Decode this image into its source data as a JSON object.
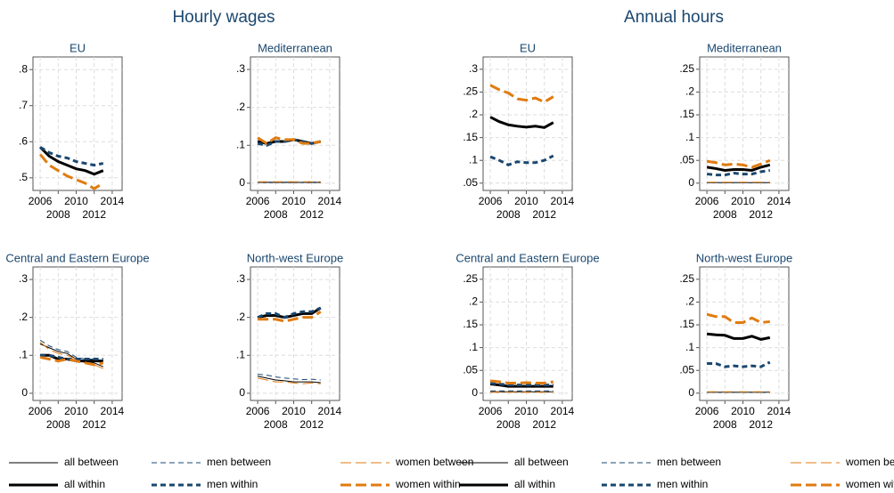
{
  "titles": [
    "Hourly wages",
    "Annual hours"
  ],
  "chart_data": [
    {
      "type": "line",
      "title": "EU",
      "x": [
        2006,
        2007,
        2008,
        2009,
        2010,
        2011,
        2012,
        2013
      ],
      "xlim": [
        2005.2,
        2015.1
      ],
      "xticks": [
        2006,
        2008,
        2010,
        2012,
        2014
      ],
      "ylim": [
        0.465,
        0.835
      ],
      "yticks": [
        {
          "value": 0.5,
          "label": ".5"
        },
        {
          "value": 0.6,
          "label": ".6"
        },
        {
          "value": 0.7,
          "label": ".7"
        },
        {
          "value": 0.8,
          "label": ".8"
        }
      ],
      "grid": true,
      "series": [
        {
          "name": "all within",
          "color": "#000000",
          "dash": "solid",
          "weight": "thick",
          "values": [
            0.585,
            0.56,
            0.545,
            0.535,
            0.525,
            0.52,
            0.51,
            0.52
          ]
        },
        {
          "name": "men within",
          "color": "#1a476f",
          "dash": "dash",
          "weight": "thick",
          "values": [
            0.585,
            0.57,
            0.56,
            0.555,
            0.545,
            0.54,
            0.535,
            0.54
          ]
        },
        {
          "name": "women within",
          "color": "#e07b10",
          "dash": "longdash",
          "weight": "thick",
          "values": [
            0.565,
            0.535,
            0.52,
            0.505,
            0.495,
            0.485,
            0.47,
            0.485
          ]
        }
      ]
    },
    {
      "type": "line",
      "title": "Mediterranean",
      "x": [
        2006,
        2007,
        2008,
        2009,
        2010,
        2011,
        2012,
        2013
      ],
      "xlim": [
        2005.2,
        2015.1
      ],
      "xticks": [
        2006,
        2008,
        2010,
        2012,
        2014
      ],
      "ylim": [
        -0.019,
        0.333
      ],
      "yticks": [
        0,
        {
          "value": 0.1,
          "label": ".1"
        },
        {
          "value": 0.2,
          "label": ".2"
        },
        {
          "value": 0.3,
          "label": ".3"
        }
      ],
      "grid": true,
      "series": [
        {
          "name": "all between",
          "color": "#000000",
          "dash": "solid",
          "weight": "thin",
          "values": [
            0.002,
            0.002,
            0.002,
            0.002,
            0.002,
            0.002,
            0.002,
            0.002
          ]
        },
        {
          "name": "men between",
          "color": "#1a476f",
          "dash": "dash",
          "weight": "thin",
          "values": [
            0.003,
            0.003,
            0.003,
            0.003,
            0.003,
            0.003,
            0.003,
            0.003
          ]
        },
        {
          "name": "women between",
          "color": "#e07b10",
          "dash": "longdash",
          "weight": "thin",
          "values": [
            0.004,
            0.004,
            0.004,
            0.004,
            0.004,
            0.004,
            0.004,
            0.004
          ]
        },
        {
          "name": "all within",
          "color": "#000000",
          "dash": "solid",
          "weight": "thick",
          "values": [
            0.11,
            0.105,
            0.11,
            0.11,
            0.115,
            0.11,
            0.105,
            0.11
          ]
        },
        {
          "name": "men within",
          "color": "#1a476f",
          "dash": "dash",
          "weight": "thick",
          "values": [
            0.105,
            0.1,
            0.11,
            0.11,
            0.115,
            0.11,
            0.105,
            0.11
          ]
        },
        {
          "name": "women within",
          "color": "#e07b10",
          "dash": "longdash",
          "weight": "thick",
          "values": [
            0.12,
            0.105,
            0.12,
            0.115,
            0.115,
            0.105,
            0.105,
            0.11
          ]
        }
      ]
    },
    {
      "type": "line",
      "title": "Central and Eastern Europe",
      "x": [
        2006,
        2007,
        2008,
        2009,
        2010,
        2011,
        2012,
        2013
      ],
      "xlim": [
        2005.2,
        2015.1
      ],
      "xticks": [
        2006,
        2008,
        2010,
        2012,
        2014
      ],
      "ylim": [
        -0.019,
        0.333
      ],
      "yticks": [
        0,
        {
          "value": 0.1,
          "label": ".1"
        },
        {
          "value": 0.2,
          "label": ".2"
        },
        {
          "value": 0.3,
          "label": ".3"
        }
      ],
      "grid": true,
      "series": [
        {
          "name": "all between",
          "color": "#000000",
          "dash": "solid",
          "weight": "thin",
          "values": [
            0.13,
            0.12,
            0.11,
            0.105,
            0.09,
            0.085,
            0.08,
            0.07
          ]
        },
        {
          "name": "men between",
          "color": "#1a476f",
          "dash": "dash",
          "weight": "thin",
          "values": [
            0.14,
            0.125,
            0.115,
            0.11,
            0.095,
            0.09,
            0.09,
            0.085
          ]
        },
        {
          "name": "women between",
          "color": "#e07b10",
          "dash": "longdash",
          "weight": "thin",
          "values": [
            0.135,
            0.115,
            0.105,
            0.1,
            0.09,
            0.08,
            0.075,
            0.065
          ]
        },
        {
          "name": "all within",
          "color": "#000000",
          "dash": "solid",
          "weight": "thick",
          "values": [
            0.1,
            0.1,
            0.09,
            0.09,
            0.085,
            0.085,
            0.085,
            0.085
          ]
        },
        {
          "name": "men within",
          "color": "#1a476f",
          "dash": "dash",
          "weight": "thick",
          "values": [
            0.1,
            0.1,
            0.095,
            0.09,
            0.09,
            0.09,
            0.09,
            0.09
          ]
        },
        {
          "name": "women within",
          "color": "#e07b10",
          "dash": "longdash",
          "weight": "thick",
          "values": [
            0.095,
            0.09,
            0.085,
            0.09,
            0.085,
            0.08,
            0.075,
            0.08
          ]
        }
      ]
    },
    {
      "type": "line",
      "title": "North-west Europe",
      "x": [
        2006,
        2007,
        2008,
        2009,
        2010,
        2011,
        2012,
        2013
      ],
      "xlim": [
        2005.2,
        2015.1
      ],
      "xticks": [
        2006,
        2008,
        2010,
        2012,
        2014
      ],
      "ylim": [
        -0.019,
        0.333
      ],
      "yticks": [
        0,
        {
          "value": 0.1,
          "label": ".1"
        },
        {
          "value": 0.2,
          "label": ".2"
        },
        {
          "value": 0.3,
          "label": ".3"
        }
      ],
      "grid": true,
      "series": [
        {
          "name": "all between",
          "color": "#000000",
          "dash": "solid",
          "weight": "thin",
          "values": [
            0.045,
            0.04,
            0.035,
            0.033,
            0.03,
            0.03,
            0.03,
            0.028
          ]
        },
        {
          "name": "men between",
          "color": "#1a476f",
          "dash": "dash",
          "weight": "thin",
          "values": [
            0.05,
            0.048,
            0.043,
            0.04,
            0.038,
            0.036,
            0.037,
            0.035
          ]
        },
        {
          "name": "women between",
          "color": "#e07b10",
          "dash": "longdash",
          "weight": "thin",
          "values": [
            0.04,
            0.035,
            0.03,
            0.03,
            0.027,
            0.025,
            0.027,
            0.025
          ]
        },
        {
          "name": "all within",
          "color": "#000000",
          "dash": "solid",
          "weight": "thick",
          "values": [
            0.2,
            0.205,
            0.205,
            0.2,
            0.205,
            0.21,
            0.21,
            0.225
          ]
        },
        {
          "name": "men within",
          "color": "#1a476f",
          "dash": "dash",
          "weight": "thick",
          "values": [
            0.2,
            0.21,
            0.21,
            0.2,
            0.21,
            0.215,
            0.215,
            0.225
          ]
        },
        {
          "name": "women within",
          "color": "#e07b10",
          "dash": "longdash",
          "weight": "thick",
          "values": [
            0.195,
            0.195,
            0.195,
            0.19,
            0.195,
            0.2,
            0.2,
            0.215
          ]
        }
      ]
    },
    {
      "type": "line",
      "title": "EU",
      "x": [
        2006,
        2007,
        2008,
        2009,
        2010,
        2011,
        2012,
        2013
      ],
      "xlim": [
        2005.2,
        2015.1
      ],
      "xticks": [
        2006,
        2008,
        2010,
        2012,
        2014
      ],
      "ylim": [
        0.034,
        0.327
      ],
      "yticks": [
        {
          "value": 0.05,
          "label": ".05"
        },
        {
          "value": 0.1,
          "label": ".1"
        },
        {
          "value": 0.15,
          "label": ".15"
        },
        {
          "value": 0.2,
          "label": ".2"
        },
        {
          "value": 0.25,
          "label": ".25"
        },
        {
          "value": 0.3,
          "label": ".3"
        }
      ],
      "grid": true,
      "series": [
        {
          "name": "all within",
          "color": "#000000",
          "dash": "solid",
          "weight": "thick",
          "values": [
            0.195,
            0.185,
            0.178,
            0.175,
            0.173,
            0.175,
            0.172,
            0.183
          ]
        },
        {
          "name": "men within",
          "color": "#1a476f",
          "dash": "dash",
          "weight": "thick",
          "values": [
            0.108,
            0.1,
            0.09,
            0.097,
            0.095,
            0.095,
            0.1,
            0.11
          ]
        },
        {
          "name": "women within",
          "color": "#e07b10",
          "dash": "longdash",
          "weight": "thick",
          "values": [
            0.265,
            0.255,
            0.248,
            0.235,
            0.232,
            0.237,
            0.228,
            0.24
          ]
        }
      ]
    },
    {
      "type": "line",
      "title": "Mediterranean",
      "x": [
        2006,
        2007,
        2008,
        2009,
        2010,
        2011,
        2012,
        2013
      ],
      "xlim": [
        2005.2,
        2015.1
      ],
      "xticks": [
        2006,
        2008,
        2010,
        2012,
        2014
      ],
      "ylim": [
        -0.016,
        0.277
      ],
      "yticks": [
        0,
        {
          "value": 0.05,
          "label": ".05"
        },
        {
          "value": 0.1,
          "label": ".1"
        },
        {
          "value": 0.15,
          "label": ".15"
        },
        {
          "value": 0.2,
          "label": ".2"
        },
        {
          "value": 0.25,
          "label": ".25"
        }
      ],
      "grid": true,
      "series": [
        {
          "name": "all between",
          "color": "#000000",
          "dash": "solid",
          "weight": "thin",
          "values": [
            0.001,
            0.001,
            0.001,
            0.001,
            0.001,
            0.001,
            0.001,
            0.001
          ]
        },
        {
          "name": "men between",
          "color": "#1a476f",
          "dash": "dash",
          "weight": "thin",
          "values": [
            0.001,
            0.001,
            0.001,
            0.001,
            0.001,
            0.001,
            0.001,
            0.001
          ]
        },
        {
          "name": "women between",
          "color": "#e07b10",
          "dash": "longdash",
          "weight": "thin",
          "values": [
            0.002,
            0.002,
            0.002,
            0.002,
            0.002,
            0.002,
            0.002,
            0.002
          ]
        },
        {
          "name": "all within",
          "color": "#000000",
          "dash": "solid",
          "weight": "thick",
          "values": [
            0.035,
            0.032,
            0.028,
            0.03,
            0.03,
            0.028,
            0.035,
            0.04
          ]
        },
        {
          "name": "men within",
          "color": "#1a476f",
          "dash": "dash",
          "weight": "thick",
          "values": [
            0.02,
            0.018,
            0.018,
            0.022,
            0.02,
            0.02,
            0.025,
            0.028
          ]
        },
        {
          "name": "women within",
          "color": "#e07b10",
          "dash": "longdash",
          "weight": "thick",
          "values": [
            0.048,
            0.045,
            0.04,
            0.042,
            0.04,
            0.035,
            0.042,
            0.05
          ]
        }
      ]
    },
    {
      "type": "line",
      "title": "Central and Eastern Europe",
      "x": [
        2006,
        2007,
        2008,
        2009,
        2010,
        2011,
        2012,
        2013
      ],
      "xlim": [
        2005.2,
        2015.1
      ],
      "xticks": [
        2006,
        2008,
        2010,
        2012,
        2014
      ],
      "ylim": [
        -0.016,
        0.277
      ],
      "yticks": [
        0,
        {
          "value": 0.05,
          "label": ".05"
        },
        {
          "value": 0.1,
          "label": ".1"
        },
        {
          "value": 0.15,
          "label": ".15"
        },
        {
          "value": 0.2,
          "label": ".2"
        },
        {
          "value": 0.25,
          "label": ".25"
        }
      ],
      "grid": true,
      "series": [
        {
          "name": "all between",
          "color": "#000000",
          "dash": "solid",
          "weight": "thin",
          "values": [
            0.003,
            0.003,
            0.003,
            0.003,
            0.003,
            0.003,
            0.003,
            0.003
          ]
        },
        {
          "name": "men between",
          "color": "#1a476f",
          "dash": "dash",
          "weight": "thin",
          "values": [
            0.005,
            0.005,
            0.005,
            0.005,
            0.005,
            0.005,
            0.005,
            0.005
          ]
        },
        {
          "name": "women between",
          "color": "#e07b10",
          "dash": "longdash",
          "weight": "thin",
          "values": [
            0.002,
            0.002,
            0.002,
            0.002,
            0.002,
            0.002,
            0.002,
            0.002
          ]
        },
        {
          "name": "all within",
          "color": "#000000",
          "dash": "solid",
          "weight": "thick",
          "values": [
            0.02,
            0.018,
            0.015,
            0.015,
            0.015,
            0.015,
            0.015,
            0.015
          ]
        },
        {
          "name": "men within",
          "color": "#1a476f",
          "dash": "dash",
          "weight": "thick",
          "values": [
            0.022,
            0.02,
            0.018,
            0.018,
            0.018,
            0.018,
            0.018,
            0.018
          ]
        },
        {
          "name": "women within",
          "color": "#e07b10",
          "dash": "longdash",
          "weight": "thick",
          "values": [
            0.027,
            0.025,
            0.022,
            0.022,
            0.023,
            0.022,
            0.022,
            0.025
          ]
        }
      ]
    },
    {
      "type": "line",
      "title": "North-west Europe",
      "x": [
        2006,
        2007,
        2008,
        2009,
        2010,
        2011,
        2012,
        2013
      ],
      "xlim": [
        2005.2,
        2015.1
      ],
      "xticks": [
        2006,
        2008,
        2010,
        2012,
        2014
      ],
      "ylim": [
        -0.016,
        0.277
      ],
      "yticks": [
        0,
        {
          "value": 0.05,
          "label": ".05"
        },
        {
          "value": 0.1,
          "label": ".1"
        },
        {
          "value": 0.15,
          "label": ".15"
        },
        {
          "value": 0.2,
          "label": ".2"
        },
        {
          "value": 0.25,
          "label": ".25"
        }
      ],
      "grid": true,
      "series": [
        {
          "name": "all between",
          "color": "#000000",
          "dash": "solid",
          "weight": "thin",
          "values": [
            0.002,
            0.002,
            0.002,
            0.002,
            0.002,
            0.002,
            0.002,
            0.002
          ]
        },
        {
          "name": "men between",
          "color": "#1a476f",
          "dash": "dash",
          "weight": "thin",
          "values": [
            0.002,
            0.002,
            0.002,
            0.002,
            0.002,
            0.002,
            0.002,
            0.002
          ]
        },
        {
          "name": "women between",
          "color": "#e07b10",
          "dash": "longdash",
          "weight": "thin",
          "values": [
            0.003,
            0.003,
            0.003,
            0.003,
            0.003,
            0.003,
            0.003,
            0.003
          ]
        },
        {
          "name": "all within",
          "color": "#000000",
          "dash": "solid",
          "weight": "thick",
          "values": [
            0.13,
            0.128,
            0.127,
            0.12,
            0.12,
            0.125,
            0.118,
            0.122
          ]
        },
        {
          "name": "men within",
          "color": "#1a476f",
          "dash": "dash",
          "weight": "thick",
          "values": [
            0.065,
            0.065,
            0.058,
            0.06,
            0.058,
            0.06,
            0.058,
            0.068
          ]
        },
        {
          "name": "women within",
          "color": "#e07b10",
          "dash": "longdash",
          "weight": "thick",
          "values": [
            0.173,
            0.168,
            0.168,
            0.155,
            0.155,
            0.165,
            0.155,
            0.157
          ]
        }
      ]
    }
  ]
}
